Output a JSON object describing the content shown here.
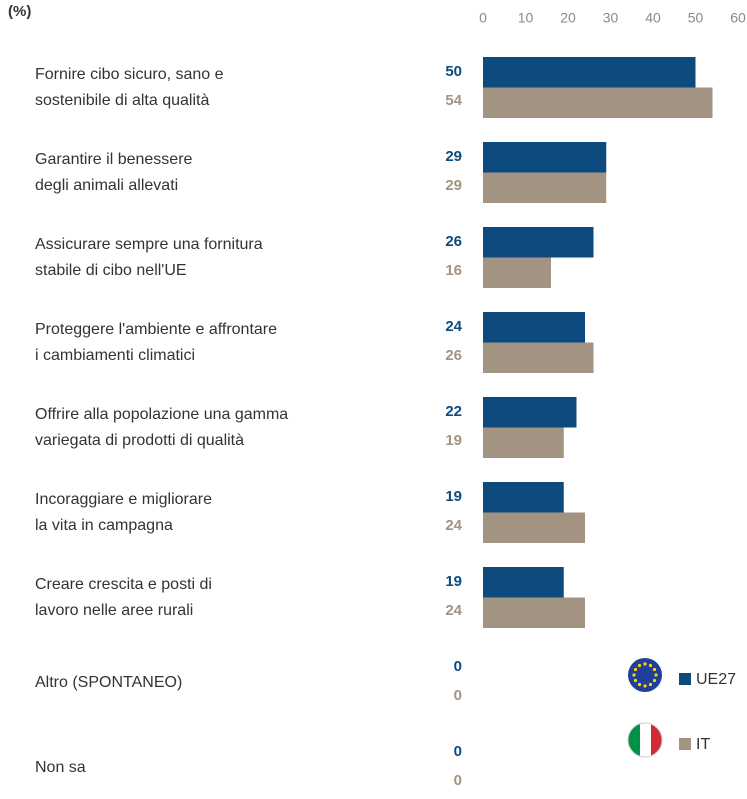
{
  "chart_data": {
    "type": "bar",
    "orientation": "horizontal",
    "title": "(%)",
    "categories": [
      "Fornire cibo sicuro, sano e\nsostenibile di alta qualità",
      "Garantire il benessere\ndegli animali allevati",
      "Assicurare sempre una fornitura\nstabile di cibo nell'UE",
      "Proteggere l'ambiente e affrontare\ni cambiamenti climatici",
      "Offrire alla popolazione una gamma\nvariegata di prodotti di qualità",
      "Incoraggiare e migliorare\nla vita in campagna",
      "Creare crescita e posti di\nlavoro nelle aree rurali",
      "Altro (SPONTANEO)",
      "Non sa"
    ],
    "series": [
      {
        "name": "UE27",
        "color": "#0d4b7f",
        "values": [
          50,
          29,
          26,
          24,
          22,
          19,
          19,
          0,
          0
        ]
      },
      {
        "name": "IT",
        "color": "#a39383",
        "values": [
          54,
          29,
          16,
          26,
          19,
          24,
          24,
          0,
          0
        ]
      }
    ],
    "xlim": [
      0,
      60
    ],
    "xticks": [
      0,
      10,
      20,
      30,
      40,
      50,
      60
    ],
    "legend": "lower right"
  }
}
